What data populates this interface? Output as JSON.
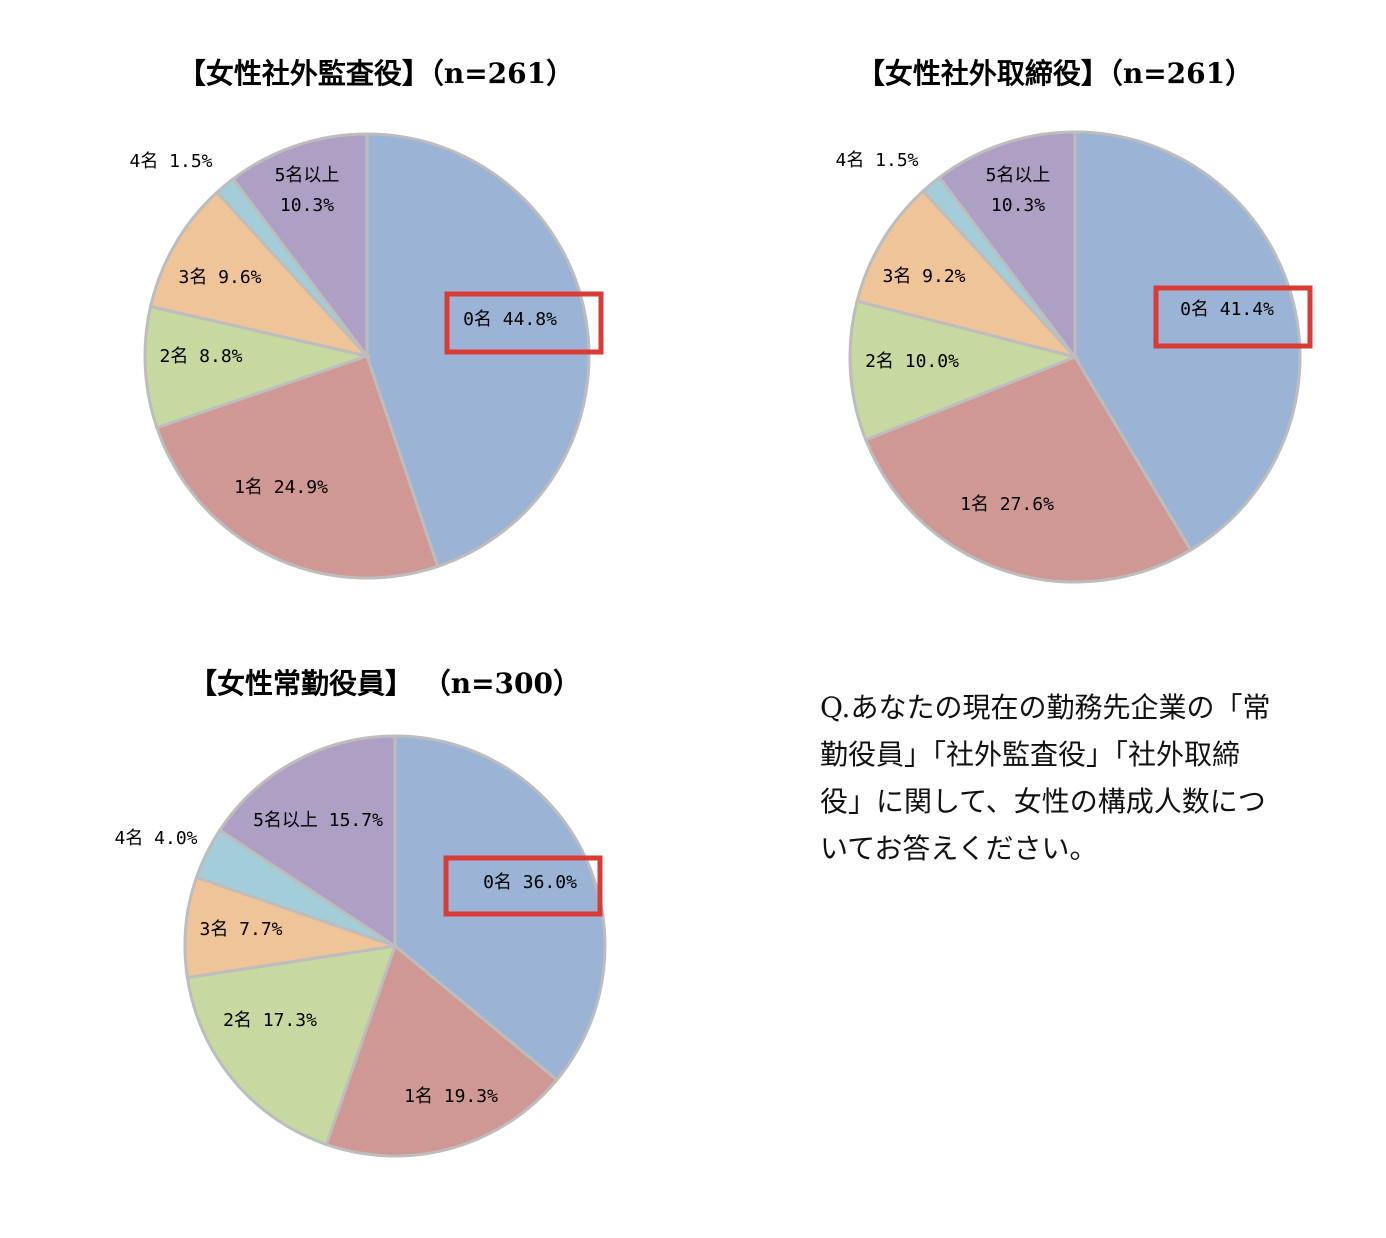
{
  "chart_data": [
    {
      "type": "pie",
      "title": "【女性社外監査役】（n=261）",
      "categories": [
        "0名",
        "1名",
        "2名",
        "3名",
        "4名",
        "5名以上"
      ],
      "values": [
        44.8,
        24.9,
        8.8,
        9.6,
        1.5,
        10.3
      ],
      "labels": [
        "0名 44.8%",
        "1名 24.9%",
        "2名 8.8%",
        "3名 9.6%",
        "4名 1.5%",
        "5名以上\n10.3%"
      ],
      "highlighted": "0名"
    },
    {
      "type": "pie",
      "title": "【女性社外取締役】（n=261）",
      "categories": [
        "0名",
        "1名",
        "2名",
        "3名",
        "4名",
        "5名以上"
      ],
      "values": [
        41.4,
        27.6,
        10.0,
        9.2,
        1.5,
        10.3
      ],
      "labels": [
        "0名 41.4%",
        "1名 27.6%",
        "2名 10.0%",
        "3名 9.2%",
        "4名 1.5%",
        "5名以上\n10.3%"
      ],
      "highlighted": "0名"
    },
    {
      "type": "pie",
      "title": "【女性常勤役員】 （n=300）",
      "categories": [
        "0名",
        "1名",
        "2名",
        "3名",
        "4名",
        "5名以上"
      ],
      "values": [
        36.0,
        19.3,
        17.3,
        7.7,
        4.0,
        15.7
      ],
      "labels": [
        "0名 36.0%",
        "1名 19.3%",
        "2名 17.3%",
        "3名 7.7%",
        "4名 4.0%",
        "5名以上 15.7%"
      ],
      "highlighted": "0名"
    }
  ],
  "colors": {
    "slices": [
      "#9bb3d5",
      "#d09894",
      "#c8d8a1",
      "#efc499",
      "#a3cdd9",
      "#ae9fc5"
    ],
    "slice_border": "#bdbdbd",
    "highlight_box": "#d93b35"
  },
  "question": "Q.あなたの現在の勤務先企業の「常\n勤役員」「社外監査役」「社外取締\n役」に関して、女性の構成人数につ\nいてお答えください。"
}
